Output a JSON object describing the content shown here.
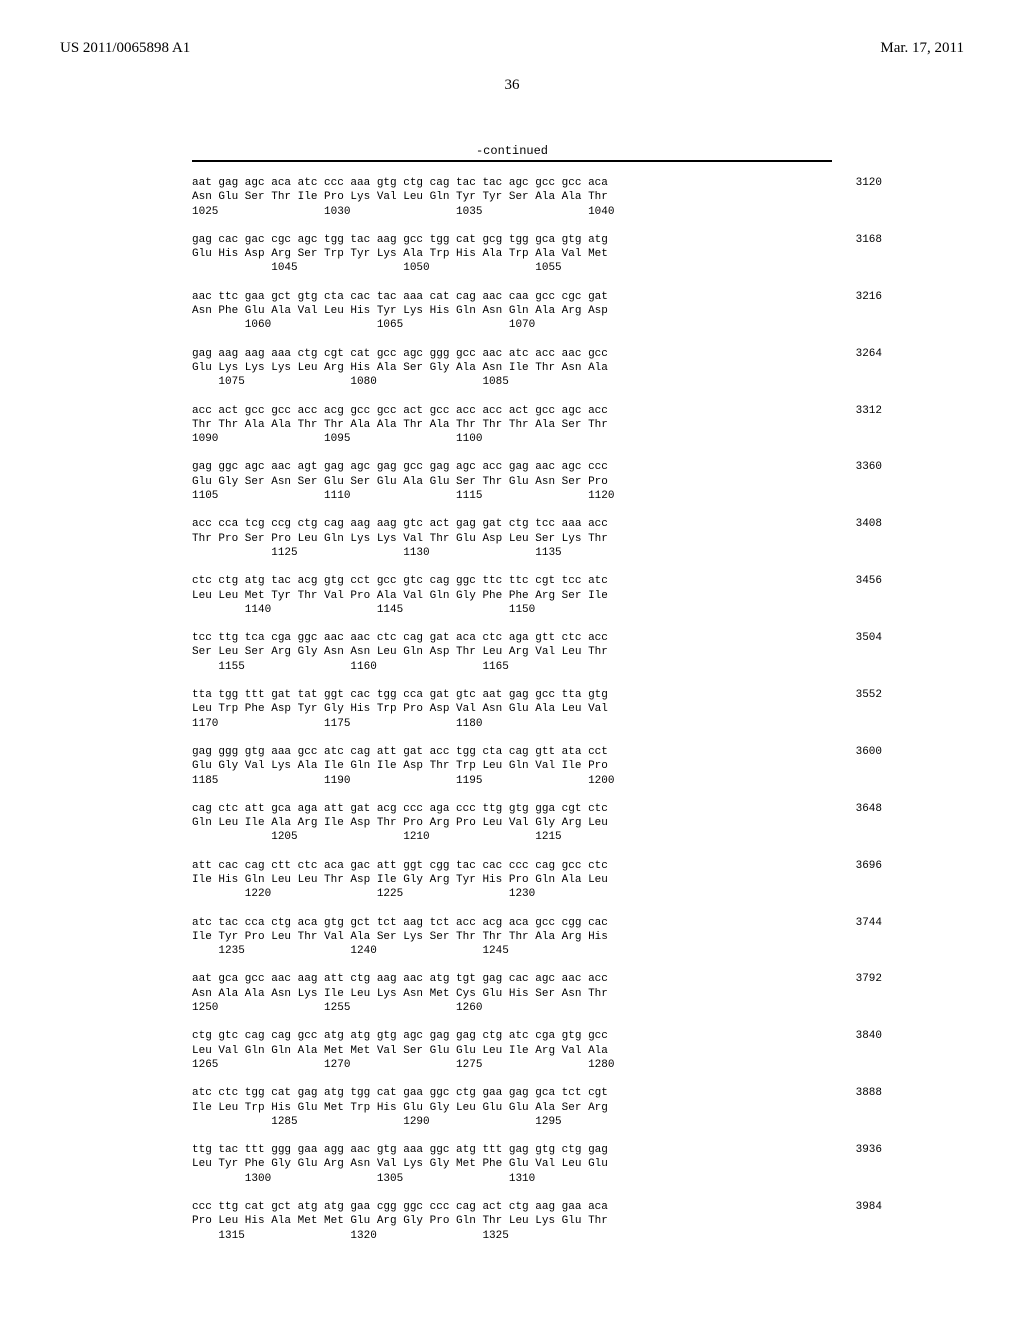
{
  "header": {
    "publication_number": "US 2011/0065898 A1",
    "date": "Mar. 17, 2011"
  },
  "page_number": "36",
  "continued_label": "-continued",
  "sequence_blocks": [
    {
      "dna": "aat gag agc aca atc ccc aaa gtg ctg cag tac tac agc gcc gcc aca",
      "aa": "Asn Glu Ser Thr Ile Pro Lys Val Leu Gln Tyr Tyr Ser Ala Ala Thr",
      "positions": "1025                1030                1035                1040",
      "end_number": "3120"
    },
    {
      "dna": "gag cac gac cgc agc tgg tac aag gcc tgg cat gcg tgg gca gtg atg",
      "aa": "Glu His Asp Arg Ser Trp Tyr Lys Ala Trp His Ala Trp Ala Val Met",
      "positions": "            1045                1050                1055",
      "end_number": "3168"
    },
    {
      "dna": "aac ttc gaa gct gtg cta cac tac aaa cat cag aac caa gcc cgc gat",
      "aa": "Asn Phe Glu Ala Val Leu His Tyr Lys His Gln Asn Gln Ala Arg Asp",
      "positions": "        1060                1065                1070",
      "end_number": "3216"
    },
    {
      "dna": "gag aag aag aaa ctg cgt cat gcc agc ggg gcc aac atc acc aac gcc",
      "aa": "Glu Lys Lys Lys Leu Arg His Ala Ser Gly Ala Asn Ile Thr Asn Ala",
      "positions": "    1075                1080                1085",
      "end_number": "3264"
    },
    {
      "dna": "acc act gcc gcc acc acg gcc gcc act gcc acc acc act gcc agc acc",
      "aa": "Thr Thr Ala Ala Thr Thr Ala Ala Thr Ala Thr Thr Thr Ala Ser Thr",
      "positions": "1090                1095                1100",
      "end_number": "3312"
    },
    {
      "dna": "gag ggc agc aac agt gag agc gag gcc gag agc acc gag aac agc ccc",
      "aa": "Glu Gly Ser Asn Ser Glu Ser Glu Ala Glu Ser Thr Glu Asn Ser Pro",
      "positions": "1105                1110                1115                1120",
      "end_number": "3360"
    },
    {
      "dna": "acc cca tcg ccg ctg cag aag aag gtc act gag gat ctg tcc aaa acc",
      "aa": "Thr Pro Ser Pro Leu Gln Lys Lys Val Thr Glu Asp Leu Ser Lys Thr",
      "positions": "            1125                1130                1135",
      "end_number": "3408"
    },
    {
      "dna": "ctc ctg atg tac acg gtg cct gcc gtc cag ggc ttc ttc cgt tcc atc",
      "aa": "Leu Leu Met Tyr Thr Val Pro Ala Val Gln Gly Phe Phe Arg Ser Ile",
      "positions": "        1140                1145                1150",
      "end_number": "3456"
    },
    {
      "dna": "tcc ttg tca cga ggc aac aac ctc cag gat aca ctc aga gtt ctc acc",
      "aa": "Ser Leu Ser Arg Gly Asn Asn Leu Gln Asp Thr Leu Arg Val Leu Thr",
      "positions": "    1155                1160                1165",
      "end_number": "3504"
    },
    {
      "dna": "tta tgg ttt gat tat ggt cac tgg cca gat gtc aat gag gcc tta gtg",
      "aa": "Leu Trp Phe Asp Tyr Gly His Trp Pro Asp Val Asn Glu Ala Leu Val",
      "positions": "1170                1175                1180",
      "end_number": "3552"
    },
    {
      "dna": "gag ggg gtg aaa gcc atc cag att gat acc tgg cta cag gtt ata cct",
      "aa": "Glu Gly Val Lys Ala Ile Gln Ile Asp Thr Trp Leu Gln Val Ile Pro",
      "positions": "1185                1190                1195                1200",
      "end_number": "3600"
    },
    {
      "dna": "cag ctc att gca aga att gat acg ccc aga ccc ttg gtg gga cgt ctc",
      "aa": "Gln Leu Ile Ala Arg Ile Asp Thr Pro Arg Pro Leu Val Gly Arg Leu",
      "positions": "            1205                1210                1215",
      "end_number": "3648"
    },
    {
      "dna": "att cac cag ctt ctc aca gac att ggt cgg tac cac ccc cag gcc ctc",
      "aa": "Ile His Gln Leu Leu Thr Asp Ile Gly Arg Tyr His Pro Gln Ala Leu",
      "positions": "        1220                1225                1230",
      "end_number": "3696"
    },
    {
      "dna": "atc tac cca ctg aca gtg gct tct aag tct acc acg aca gcc cgg cac",
      "aa": "Ile Tyr Pro Leu Thr Val Ala Ser Lys Ser Thr Thr Thr Ala Arg His",
      "positions": "    1235                1240                1245",
      "end_number": "3744"
    },
    {
      "dna": "aat gca gcc aac aag att ctg aag aac atg tgt gag cac agc aac acc",
      "aa": "Asn Ala Ala Asn Lys Ile Leu Lys Asn Met Cys Glu His Ser Asn Thr",
      "positions": "1250                1255                1260",
      "end_number": "3792"
    },
    {
      "dna": "ctg gtc cag cag gcc atg atg gtg agc gag gag ctg atc cga gtg gcc",
      "aa": "Leu Val Gln Gln Ala Met Met Val Ser Glu Glu Leu Ile Arg Val Ala",
      "positions": "1265                1270                1275                1280",
      "end_number": "3840"
    },
    {
      "dna": "atc ctc tgg cat gag atg tgg cat gaa ggc ctg gaa gag gca tct cgt",
      "aa": "Ile Leu Trp His Glu Met Trp His Glu Gly Leu Glu Glu Ala Ser Arg",
      "positions": "            1285                1290                1295",
      "end_number": "3888"
    },
    {
      "dna": "ttg tac ttt ggg gaa agg aac gtg aaa ggc atg ttt gag gtg ctg gag",
      "aa": "Leu Tyr Phe Gly Glu Arg Asn Val Lys Gly Met Phe Glu Val Leu Glu",
      "positions": "        1300                1305                1310",
      "end_number": "3936"
    },
    {
      "dna": "ccc ttg cat gct atg atg gaa cgg ggc ccc cag act ctg aag gaa aca",
      "aa": "Pro Leu His Ala Met Met Glu Arg Gly Pro Gln Thr Leu Lys Glu Thr",
      "positions": "    1315                1320                1325",
      "end_number": "3984"
    }
  ]
}
